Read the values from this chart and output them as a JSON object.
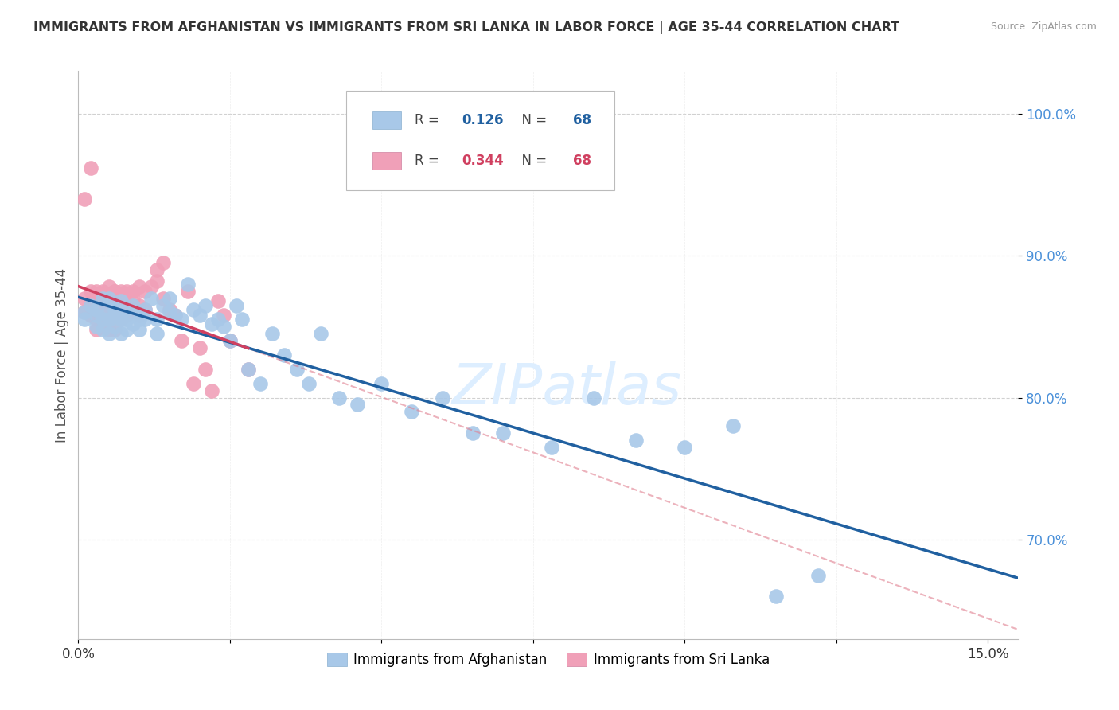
{
  "title": "IMMIGRANTS FROM AFGHANISTAN VS IMMIGRANTS FROM SRI LANKA IN LABOR FORCE | AGE 35-44 CORRELATION CHART",
  "source": "Source: ZipAtlas.com",
  "ylabel": "In Labor Force | Age 35-44",
  "legend_R_blue": "0.126",
  "legend_N_blue": "68",
  "legend_R_pink": "0.344",
  "legend_N_pink": "68",
  "legend_label_blue": "Immigrants from Afghanistan",
  "legend_label_pink": "Immigrants from Sri Lanka",
  "blue_color": "#a8c8e8",
  "blue_line_color": "#2060a0",
  "pink_color": "#f0a0b8",
  "pink_line_color": "#d04060",
  "pink_dash_color": "#e08090",
  "watermark_color": "#ddeeff",
  "blue_x": [
    0.001,
    0.001,
    0.002,
    0.003,
    0.003,
    0.003,
    0.004,
    0.004,
    0.004,
    0.005,
    0.005,
    0.005,
    0.005,
    0.006,
    0.006,
    0.006,
    0.007,
    0.007,
    0.007,
    0.008,
    0.008,
    0.008,
    0.009,
    0.009,
    0.01,
    0.01,
    0.01,
    0.011,
    0.011,
    0.012,
    0.013,
    0.013,
    0.014,
    0.015,
    0.015,
    0.016,
    0.017,
    0.018,
    0.019,
    0.02,
    0.021,
    0.022,
    0.023,
    0.024,
    0.025,
    0.026,
    0.027,
    0.028,
    0.03,
    0.032,
    0.034,
    0.036,
    0.038,
    0.04,
    0.043,
    0.046,
    0.05,
    0.055,
    0.06,
    0.065,
    0.07,
    0.078,
    0.085,
    0.092,
    0.1,
    0.108,
    0.115,
    0.122
  ],
  "blue_y": [
    0.86,
    0.855,
    0.865,
    0.858,
    0.862,
    0.85,
    0.87,
    0.855,
    0.848,
    0.862,
    0.855,
    0.845,
    0.87,
    0.858,
    0.862,
    0.85,
    0.868,
    0.855,
    0.845,
    0.862,
    0.855,
    0.848,
    0.865,
    0.852,
    0.86,
    0.855,
    0.848,
    0.862,
    0.855,
    0.87,
    0.855,
    0.845,
    0.865,
    0.87,
    0.86,
    0.858,
    0.855,
    0.88,
    0.862,
    0.858,
    0.865,
    0.852,
    0.855,
    0.85,
    0.84,
    0.865,
    0.855,
    0.82,
    0.81,
    0.845,
    0.83,
    0.82,
    0.81,
    0.845,
    0.8,
    0.795,
    0.81,
    0.79,
    0.8,
    0.775,
    0.775,
    0.765,
    0.8,
    0.77,
    0.765,
    0.78,
    0.66,
    0.675
  ],
  "pink_x": [
    0.001,
    0.001,
    0.001,
    0.002,
    0.002,
    0.002,
    0.002,
    0.003,
    0.003,
    0.003,
    0.003,
    0.003,
    0.003,
    0.004,
    0.004,
    0.004,
    0.004,
    0.004,
    0.004,
    0.005,
    0.005,
    0.005,
    0.005,
    0.005,
    0.005,
    0.006,
    0.006,
    0.006,
    0.006,
    0.006,
    0.006,
    0.006,
    0.006,
    0.007,
    0.007,
    0.007,
    0.007,
    0.007,
    0.007,
    0.008,
    0.008,
    0.008,
    0.008,
    0.009,
    0.009,
    0.009,
    0.01,
    0.01,
    0.01,
    0.011,
    0.011,
    0.012,
    0.013,
    0.013,
    0.014,
    0.014,
    0.015,
    0.016,
    0.017,
    0.018,
    0.019,
    0.02,
    0.021,
    0.022,
    0.023,
    0.024,
    0.025,
    0.028
  ],
  "pink_y": [
    0.87,
    0.94,
    0.86,
    0.962,
    0.858,
    0.865,
    0.875,
    0.868,
    0.855,
    0.875,
    0.86,
    0.848,
    0.87,
    0.875,
    0.862,
    0.85,
    0.87,
    0.858,
    0.865,
    0.87,
    0.862,
    0.855,
    0.878,
    0.87,
    0.848,
    0.875,
    0.862,
    0.87,
    0.858,
    0.875,
    0.862,
    0.848,
    0.87,
    0.875,
    0.862,
    0.87,
    0.855,
    0.87,
    0.862,
    0.875,
    0.862,
    0.87,
    0.858,
    0.875,
    0.862,
    0.87,
    0.865,
    0.878,
    0.858,
    0.875,
    0.862,
    0.878,
    0.89,
    0.882,
    0.87,
    0.895,
    0.862,
    0.858,
    0.84,
    0.875,
    0.81,
    0.835,
    0.82,
    0.805,
    0.868,
    0.858,
    0.84,
    0.82
  ],
  "xlim": [
    0.0,
    0.155
  ],
  "ylim": [
    0.63,
    1.03
  ],
  "ytick_positions": [
    0.7,
    0.8,
    0.9,
    1.0
  ],
  "ytick_labels": [
    "70.0%",
    "80.0%",
    "90.0%",
    "100.0%"
  ],
  "xtick_positions": [
    0.0,
    0.025,
    0.05,
    0.075,
    0.1,
    0.125,
    0.15
  ],
  "blue_line_x_start": 0.0,
  "blue_line_x_end": 0.155,
  "pink_line_x_solid_end": 0.028,
  "pink_line_x_dash_end": 0.155
}
